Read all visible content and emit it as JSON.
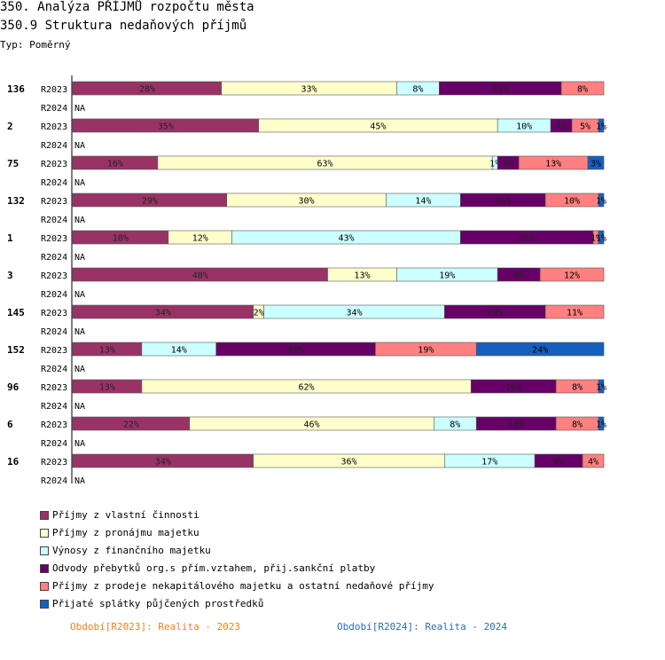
{
  "header": {
    "title": "350. Analýza PŘÍJMŮ rozpočtu města",
    "subtitle": "350.9 Struktura nedaňových příjmů",
    "type_label": "Typ: Poměrný"
  },
  "chart_data": {
    "type": "bar",
    "orientation": "horizontal",
    "stacked": "percent",
    "title": "350.9 Struktura nedaňových příjmů",
    "row_labels": [
      "R2023",
      "R2024"
    ],
    "na_label": "NA",
    "categories": [
      "136",
      "2",
      "75",
      "132",
      "1",
      "3",
      "145",
      "152",
      "96",
      "6",
      "16"
    ],
    "series": [
      {
        "name": "Příjmy z vlastní činnosti",
        "color": "#993366",
        "values": [
          28,
          35,
          16,
          29,
          18,
          48,
          34,
          13,
          13,
          22,
          34
        ],
        "labels": [
          "28%",
          "35%",
          "16%",
          "29%",
          "18%",
          "48%",
          "34%",
          "13%",
          "13%",
          "22%",
          "34%"
        ]
      },
      {
        "name": "Příjmy z pronájmu majetku",
        "color": "#ffffcc",
        "values": [
          33,
          45,
          63,
          30,
          12,
          13,
          2,
          0,
          62,
          46,
          36
        ],
        "labels": [
          "33%",
          "45%",
          "63%",
          "30%",
          "12%",
          "13%",
          "2%",
          "",
          "62%",
          "46%",
          "36%"
        ]
      },
      {
        "name": "Výnosy z finančního majetku",
        "color": "#ccffff",
        "values": [
          8,
          10,
          1,
          14,
          43,
          19,
          34,
          14,
          0,
          8,
          17
        ],
        "labels": [
          "8%",
          "10%",
          "1%",
          "14%",
          "43%",
          "19%",
          "34%",
          "14%",
          "",
          "8%",
          "17%"
        ]
      },
      {
        "name": "Odvody přebytků org.s přím.vztahem, přij.sankční platby",
        "color": "#660066",
        "values": [
          23,
          4,
          4,
          16,
          25,
          8,
          19,
          30,
          16,
          15,
          9
        ],
        "labels": [
          "23%",
          "4%",
          "4%",
          "16%",
          "25%",
          "8%",
          "19%",
          "30%",
          "16%",
          "15%",
          "9%"
        ]
      },
      {
        "name": "Příjmy z prodeje nekapitálového majetku a ostatní nedaňové příjmy",
        "color": "#ff8080",
        "values": [
          8,
          5,
          13,
          10,
          1,
          12,
          11,
          19,
          8,
          8,
          4
        ],
        "labels": [
          "8%",
          "5%",
          "13%",
          "10%",
          "1%",
          "12%",
          "11%",
          "19%",
          "8%",
          "8%",
          "4%"
        ]
      },
      {
        "name": "Přijaté splátky půjčených prostředků",
        "color": "#1560bd",
        "values": [
          0,
          1,
          3,
          1,
          1,
          0,
          0,
          24,
          1,
          1,
          0
        ],
        "labels": [
          "",
          "1%",
          "3%",
          "1%",
          "1%",
          "",
          "",
          "24%",
          "1%",
          "1%",
          ""
        ]
      }
    ],
    "xlim": [
      0,
      100
    ],
    "legend_position": "bottom"
  },
  "footer": {
    "period_2023": "Období[R2023]: Realita - 2023",
    "period_2024": "Období[R2024]: Realita - 2024"
  }
}
